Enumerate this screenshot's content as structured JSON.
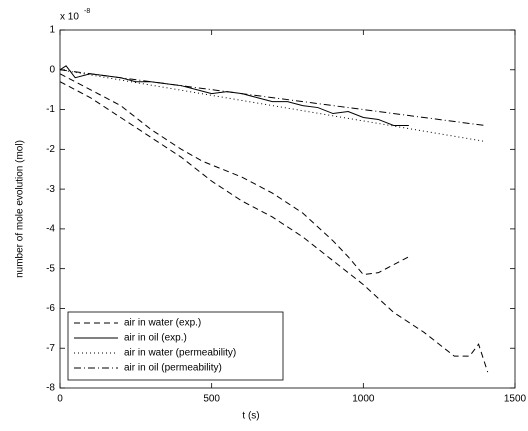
{
  "chart_data": {
    "type": "line",
    "x_label": "t (s)",
    "y_label": "number of mole evolution (mol)",
    "y_multiplier": {
      "base": "x 10",
      "exponent": "-8"
    },
    "xlim": [
      0,
      1500
    ],
    "xticks": [
      0,
      500,
      1000,
      1500
    ],
    "ylim": [
      -8,
      1
    ],
    "yticks": [
      -8,
      -7,
      -6,
      -5,
      -4,
      -3,
      -2,
      -1,
      0,
      1
    ],
    "legend_position": "lower left",
    "series": [
      {
        "name": "air in water (exp.)",
        "color": "#000000",
        "style": "dashed",
        "x": [
          0,
          100,
          200,
          300,
          400,
          470,
          600,
          700,
          800,
          900,
          950,
          1000,
          1050,
          1100,
          1150
        ],
        "values": [
          -0.1,
          -0.5,
          -0.9,
          -1.5,
          -2.0,
          -2.3,
          -2.7,
          -3.1,
          -3.6,
          -4.3,
          -4.7,
          -5.15,
          -5.1,
          -4.9,
          -4.7
        ]
      },
      {
        "name": "air in oil (exp.)",
        "color": "#000000",
        "style": "solid",
        "x": [
          0,
          20,
          50,
          100,
          150,
          200,
          250,
          300,
          350,
          400,
          450,
          500,
          550,
          600,
          650,
          700,
          750,
          800,
          850,
          900,
          950,
          1000,
          1050,
          1100,
          1150
        ],
        "values": [
          0,
          0.1,
          -0.2,
          -0.1,
          -0.15,
          -0.2,
          -0.3,
          -0.3,
          -0.35,
          -0.4,
          -0.5,
          -0.6,
          -0.55,
          -0.6,
          -0.7,
          -0.8,
          -0.8,
          -0.9,
          -0.95,
          -1.1,
          -1.05,
          -1.2,
          -1.25,
          -1.4,
          -1.4
        ]
      },
      {
        "name": "air in water (permeability)",
        "color": "#000000",
        "style": "dotted",
        "x": [
          0,
          700,
          1400
        ],
        "values": [
          0,
          -0.9,
          -1.8
        ]
      },
      {
        "name": "air in oil (permeability)",
        "color": "#000000",
        "style": "dashdot",
        "x": [
          0,
          700,
          1400
        ],
        "values": [
          0,
          -0.7,
          -1.4
        ]
      },
      {
        "color": "#000000",
        "style": "dashed",
        "x": [
          0,
          100,
          200,
          300,
          400,
          500,
          600,
          700,
          800,
          900,
          1000,
          1100,
          1200,
          1300,
          1350,
          1380,
          1410
        ],
        "values": [
          -0.3,
          -0.7,
          -1.2,
          -1.7,
          -2.2,
          -2.8,
          -3.3,
          -3.7,
          -4.2,
          -4.8,
          -5.4,
          -6.1,
          -6.6,
          -7.2,
          -7.2,
          -6.9,
          -7.6
        ]
      }
    ]
  }
}
